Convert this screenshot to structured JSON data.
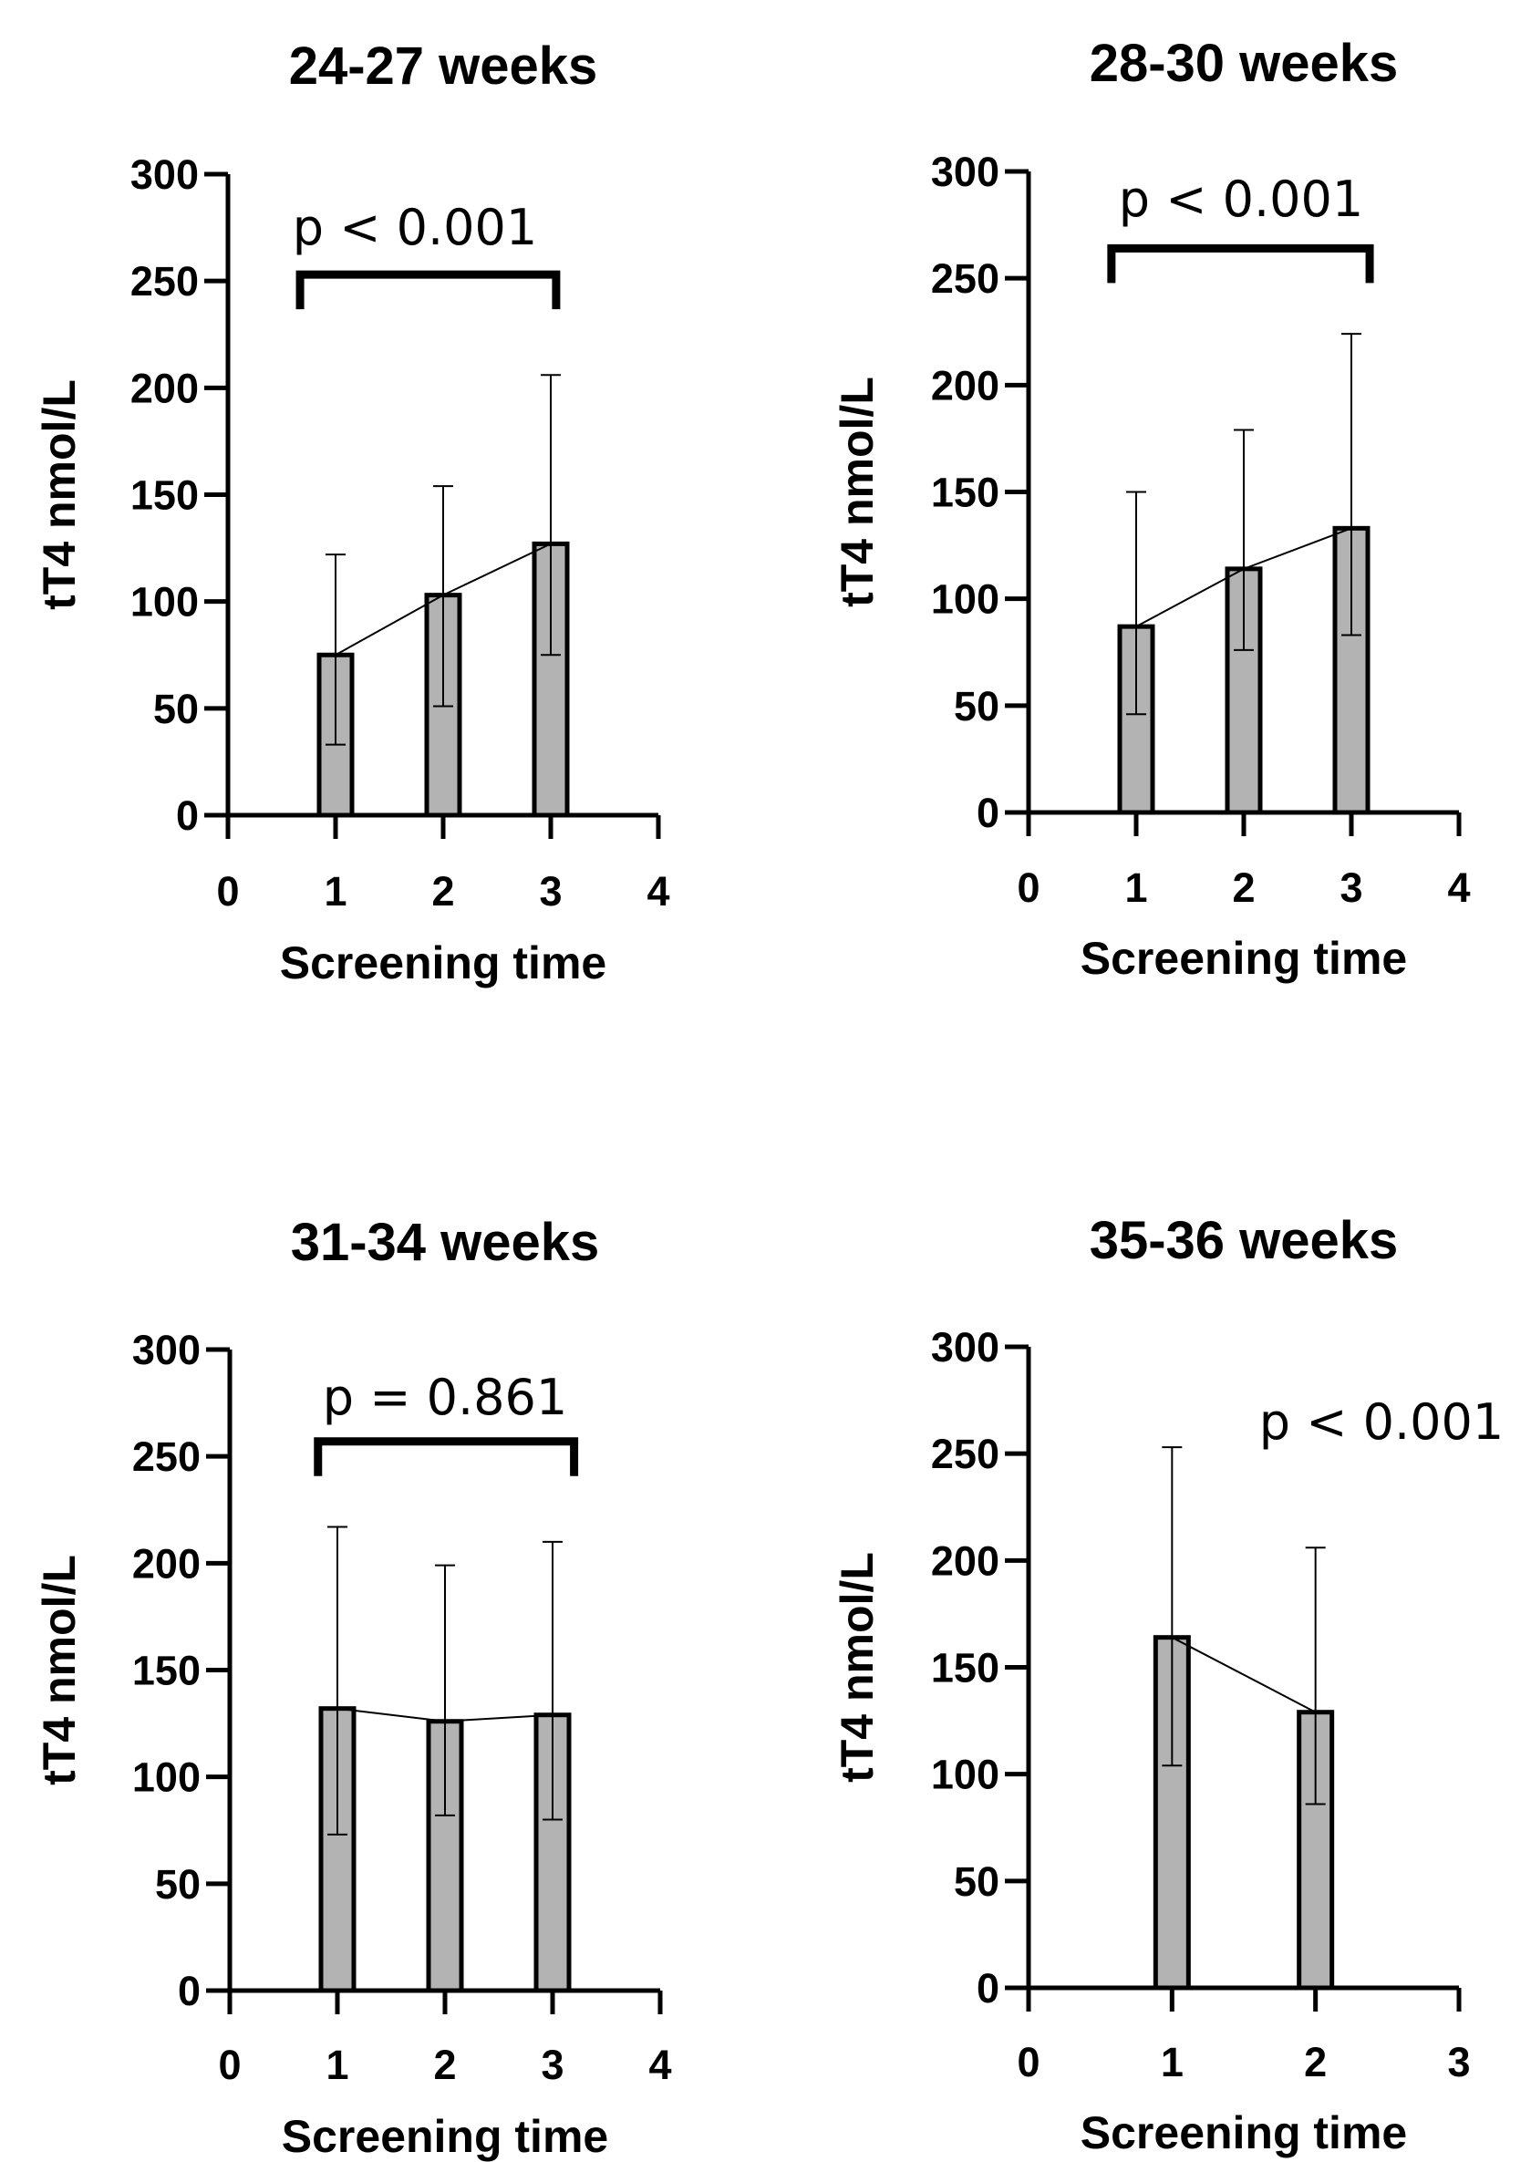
{
  "chart_data": [
    {
      "type": "bar",
      "title": "24-27 weeks",
      "xlabel": "Screening time",
      "ylabel": "tT4 nmol/L",
      "xlim": [
        0,
        4
      ],
      "ylim": [
        0,
        300
      ],
      "xticks": [
        "0",
        "1",
        "2",
        "3",
        "4"
      ],
      "yticks": [
        "0",
        "50",
        "100",
        "150",
        "200",
        "250",
        "300"
      ],
      "x": [
        1,
        2,
        3
      ],
      "values": [
        75,
        103,
        127
      ],
      "error_lower": [
        33,
        51,
        75
      ],
      "error_upper": [
        122,
        154,
        206
      ],
      "annotation": {
        "text": "p < 0.001",
        "bracket": [
          0.67,
          3.05
        ],
        "bracket_y": 253
      },
      "grid": false
    },
    {
      "type": "bar",
      "title": "28-30 weeks",
      "xlabel": "Screening time",
      "ylabel": "tT4 nmol/L",
      "xlim": [
        0,
        4
      ],
      "ylim": [
        0,
        300
      ],
      "xticks": [
        "0",
        "1",
        "2",
        "3",
        "4"
      ],
      "yticks": [
        "0",
        "50",
        "100",
        "150",
        "200",
        "250",
        "300"
      ],
      "x": [
        1,
        2,
        3
      ],
      "values": [
        87,
        114,
        133
      ],
      "error_lower": [
        46,
        76,
        83
      ],
      "error_upper": [
        150,
        179,
        224
      ],
      "annotation": {
        "text": "p < 0.001",
        "bracket": [
          0.77,
          3.17
        ],
        "bracket_y": 264
      },
      "grid": false
    },
    {
      "type": "bar",
      "title": "31-34 weeks",
      "xlabel": "Screening time",
      "ylabel": "tT4 nmol/L",
      "xlim": [
        0,
        4
      ],
      "ylim": [
        0,
        300
      ],
      "xticks": [
        "0",
        "1",
        "2",
        "3",
        "4"
      ],
      "yticks": [
        "0",
        "50",
        "100",
        "150",
        "200",
        "250",
        "300"
      ],
      "x": [
        1,
        2,
        3
      ],
      "values": [
        132,
        126,
        129
      ],
      "error_lower": [
        73,
        82,
        80
      ],
      "error_upper": [
        217,
        199,
        210
      ],
      "annotation": {
        "text": "p = 0.861",
        "bracket": [
          0.82,
          3.2
        ],
        "bracket_y": 257
      },
      "grid": false
    },
    {
      "type": "bar",
      "title": "35-36 weeks",
      "xlabel": "Screening time",
      "ylabel": "tT4 nmol/L",
      "xlim": [
        0,
        3
      ],
      "ylim": [
        0,
        300
      ],
      "xticks": [
        "0",
        "1",
        "2",
        "3"
      ],
      "yticks": [
        "0",
        "50",
        "100",
        "150",
        "200",
        "250",
        "300"
      ],
      "x": [
        1,
        2
      ],
      "values": [
        164,
        129
      ],
      "error_lower": [
        104,
        86
      ],
      "error_upper": [
        253,
        206
      ],
      "annotation": {
        "text": "p < 0.001",
        "bracket": null
      },
      "grid": false
    }
  ]
}
